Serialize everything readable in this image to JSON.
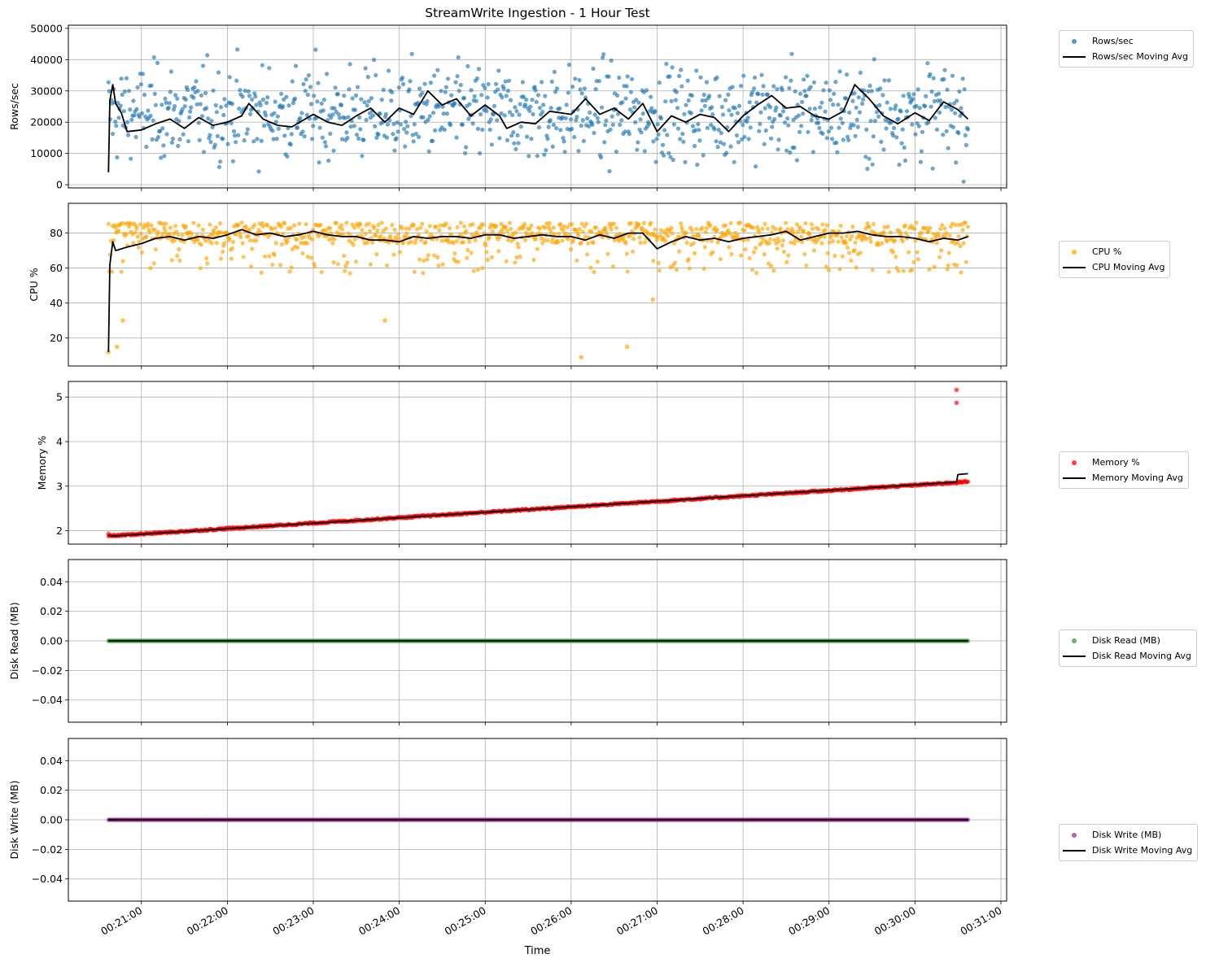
{
  "chart_data": {
    "type": "scatter",
    "title": "StreamWrite Ingestion - 1 Hour Test",
    "xlabel": "Time",
    "x_axis": {
      "type": "time",
      "start": "00:20:37",
      "end": "00:30:37",
      "range": [
        "00:20:09",
        "00:31:04"
      ],
      "ticks": [
        "00:21:00",
        "00:22:00",
        "00:23:00",
        "00:24:00",
        "00:25:00",
        "00:26:00",
        "00:27:00",
        "00:28:00",
        "00:29:00",
        "00:30:00",
        "00:31:00"
      ]
    },
    "grid": true,
    "legend_placement": "outside-right",
    "panels": [
      {
        "ylabel": "Rows/sec",
        "ylim": [
          -1000,
          51000
        ],
        "yticks": [
          "0",
          "10000",
          "20000",
          "30000",
          "40000",
          "50000"
        ],
        "ytick_values": [
          0,
          10000,
          20000,
          30000,
          40000,
          50000
        ],
        "scatter": {
          "name": "Rows/sec",
          "color": "#1f77b4",
          "mean": 23000,
          "spread": 11500,
          "min": 1000,
          "max": 48500
        },
        "moving_avg": {
          "name": "Rows/sec Moving Avg",
          "color": "#000000",
          "points": [
            [
              "00:20:37",
              4000
            ],
            [
              "00:20:38",
              27000
            ],
            [
              "00:20:40",
              32000
            ],
            [
              "00:20:42",
              26000
            ],
            [
              "00:20:46",
              23000
            ],
            [
              "00:20:50",
              17000
            ],
            [
              "00:21:00",
              17500
            ],
            [
              "00:21:10",
              19500
            ],
            [
              "00:21:20",
              21000
            ],
            [
              "00:21:30",
              18000
            ],
            [
              "00:21:40",
              21500
            ],
            [
              "00:21:50",
              19000
            ],
            [
              "00:22:00",
              20000
            ],
            [
              "00:22:10",
              22000
            ],
            [
              "00:22:15",
              26000
            ],
            [
              "00:22:25",
              21000
            ],
            [
              "00:22:35",
              19000
            ],
            [
              "00:22:45",
              18500
            ],
            [
              "00:23:00",
              22500
            ],
            [
              "00:23:10",
              20000
            ],
            [
              "00:23:20",
              19000
            ],
            [
              "00:23:30",
              22000
            ],
            [
              "00:23:40",
              24500
            ],
            [
              "00:23:50",
              20000
            ],
            [
              "00:24:00",
              24500
            ],
            [
              "00:24:10",
              22500
            ],
            [
              "00:24:20",
              30000
            ],
            [
              "00:24:30",
              25500
            ],
            [
              "00:24:40",
              27500
            ],
            [
              "00:24:50",
              22000
            ],
            [
              "00:25:00",
              25500
            ],
            [
              "00:25:10",
              22000
            ],
            [
              "00:25:15",
              18000
            ],
            [
              "00:25:25",
              20000
            ],
            [
              "00:25:35",
              19500
            ],
            [
              "00:25:45",
              23500
            ],
            [
              "00:26:00",
              22500
            ],
            [
              "00:26:10",
              27500
            ],
            [
              "00:26:20",
              22500
            ],
            [
              "00:26:30",
              24500
            ],
            [
              "00:26:40",
              21000
            ],
            [
              "00:26:50",
              26000
            ],
            [
              "00:27:00",
              17000
            ],
            [
              "00:27:10",
              22000
            ],
            [
              "00:27:20",
              20000
            ],
            [
              "00:27:30",
              22500
            ],
            [
              "00:27:40",
              21500
            ],
            [
              "00:27:50",
              17000
            ],
            [
              "00:28:00",
              22000
            ],
            [
              "00:28:10",
              25500
            ],
            [
              "00:28:20",
              28500
            ],
            [
              "00:28:30",
              24500
            ],
            [
              "00:28:40",
              25000
            ],
            [
              "00:28:50",
              22000
            ],
            [
              "00:29:00",
              21000
            ],
            [
              "00:29:10",
              23500
            ],
            [
              "00:29:18",
              32000
            ],
            [
              "00:29:28",
              27500
            ],
            [
              "00:29:38",
              22000
            ],
            [
              "00:29:48",
              19500
            ],
            [
              "00:30:00",
              23000
            ],
            [
              "00:30:10",
              20500
            ],
            [
              "00:30:20",
              26500
            ],
            [
              "00:30:30",
              24000
            ],
            [
              "00:30:37",
              21000
            ]
          ]
        }
      },
      {
        "ylabel": "CPU %",
        "ylim": [
          4,
          97
        ],
        "yticks": [
          "20",
          "40",
          "60",
          "80"
        ],
        "ytick_values": [
          20,
          40,
          60,
          80
        ],
        "scatter": {
          "name": "CPU %",
          "color": "#ffa500",
          "mean": 79,
          "spread": 8,
          "min": 42,
          "max": 95,
          "outliers": [
            [
              "00:20:37",
              12
            ],
            [
              "00:20:43",
              15
            ],
            [
              "00:20:47",
              30
            ],
            [
              "00:23:50",
              30
            ],
            [
              "00:26:07",
              9
            ],
            [
              "00:26:39",
              15
            ],
            [
              "00:26:57",
              42
            ]
          ]
        },
        "moving_avg": {
          "name": "CPU Moving Avg",
          "color": "#000000",
          "points": [
            [
              "00:20:37",
              12
            ],
            [
              "00:20:38",
              62
            ],
            [
              "00:20:40",
              75
            ],
            [
              "00:20:42",
              70
            ],
            [
              "00:20:50",
              72
            ],
            [
              "00:21:00",
              74
            ],
            [
              "00:21:10",
              77
            ],
            [
              "00:21:20",
              78
            ],
            [
              "00:21:30",
              76
            ],
            [
              "00:21:40",
              78
            ],
            [
              "00:21:50",
              77
            ],
            [
              "00:22:00",
              79
            ],
            [
              "00:22:10",
              82
            ],
            [
              "00:22:20",
              79
            ],
            [
              "00:22:30",
              80
            ],
            [
              "00:22:40",
              78
            ],
            [
              "00:22:50",
              79
            ],
            [
              "00:23:00",
              81
            ],
            [
              "00:23:10",
              79
            ],
            [
              "00:23:20",
              78
            ],
            [
              "00:23:30",
              78
            ],
            [
              "00:23:40",
              76
            ],
            [
              "00:23:50",
              76
            ],
            [
              "00:24:00",
              75
            ],
            [
              "00:24:10",
              78
            ],
            [
              "00:24:20",
              77
            ],
            [
              "00:24:30",
              78
            ],
            [
              "00:24:40",
              78
            ],
            [
              "00:24:50",
              77
            ],
            [
              "00:25:00",
              79
            ],
            [
              "00:25:10",
              79
            ],
            [
              "00:25:20",
              77
            ],
            [
              "00:25:30",
              78
            ],
            [
              "00:25:40",
              79
            ],
            [
              "00:25:50",
              78
            ],
            [
              "00:26:00",
              78
            ],
            [
              "00:26:10",
              76
            ],
            [
              "00:26:20",
              79
            ],
            [
              "00:26:30",
              77
            ],
            [
              "00:26:40",
              80
            ],
            [
              "00:26:50",
              80
            ],
            [
              "00:27:00",
              71
            ],
            [
              "00:27:10",
              75
            ],
            [
              "00:27:20",
              78
            ],
            [
              "00:27:30",
              76
            ],
            [
              "00:27:40",
              77
            ],
            [
              "00:27:50",
              75
            ],
            [
              "00:28:00",
              77
            ],
            [
              "00:28:10",
              78
            ],
            [
              "00:28:20",
              79
            ],
            [
              "00:28:30",
              81
            ],
            [
              "00:28:40",
              76
            ],
            [
              "00:28:50",
              78
            ],
            [
              "00:29:00",
              80
            ],
            [
              "00:29:10",
              80
            ],
            [
              "00:29:20",
              81
            ],
            [
              "00:29:30",
              79
            ],
            [
              "00:29:40",
              78
            ],
            [
              "00:29:50",
              78
            ],
            [
              "00:30:00",
              77
            ],
            [
              "00:30:10",
              75
            ],
            [
              "00:30:20",
              77
            ],
            [
              "00:30:30",
              76
            ],
            [
              "00:30:37",
              78
            ]
          ]
        }
      },
      {
        "ylabel": "Memory %",
        "ylim": [
          1.7,
          5.35
        ],
        "yticks": [
          "2",
          "3",
          "4",
          "5"
        ],
        "ytick_values": [
          2,
          3,
          4,
          5
        ],
        "scatter": {
          "name": "Memory %",
          "color": "#ff0000",
          "trend_start": 1.88,
          "trend_end": 3.1,
          "outliers": [
            [
              "00:30:29",
              4.87
            ],
            [
              "00:30:29",
              5.16
            ],
            [
              "00:20:37",
              1.93
            ]
          ]
        },
        "moving_avg": {
          "name": "Memory Moving Avg",
          "color": "#000000",
          "points": [
            [
              "00:20:37",
              1.9
            ],
            [
              "00:20:40",
              1.88
            ],
            [
              "00:30:29",
              3.09
            ],
            [
              "00:30:30",
              3.26
            ],
            [
              "00:30:37",
              3.28
            ]
          ]
        }
      },
      {
        "ylabel": "Disk Read (MB)",
        "ylim": [
          -0.055,
          0.055
        ],
        "yticks": [
          "−0.04",
          "−0.02",
          "0.00",
          "0.02",
          "0.04"
        ],
        "ytick_values": [
          -0.04,
          -0.02,
          0,
          0.02,
          0.04
        ],
        "scatter": {
          "name": "Disk Read (MB)",
          "color": "#2ca02c",
          "constant": 0
        },
        "moving_avg": {
          "name": "Disk Read Moving Avg",
          "color": "#000000",
          "points": [
            [
              "00:20:37",
              0
            ],
            [
              "00:30:37",
              0
            ]
          ]
        }
      },
      {
        "ylabel": "Disk Write (MB)",
        "ylim": [
          -0.055,
          0.055
        ],
        "yticks": [
          "−0.04",
          "−0.02",
          "0.00",
          "0.02",
          "0.04"
        ],
        "ytick_values": [
          -0.04,
          -0.02,
          0,
          0.02,
          0.04
        ],
        "scatter": {
          "name": "Disk Write (MB)",
          "color": "#9b2d9b",
          "constant": 0
        },
        "moving_avg": {
          "name": "Disk Write Moving Avg",
          "color": "#000000",
          "points": [
            [
              "00:20:37",
              0
            ],
            [
              "00:30:37",
              0
            ]
          ]
        }
      }
    ]
  }
}
